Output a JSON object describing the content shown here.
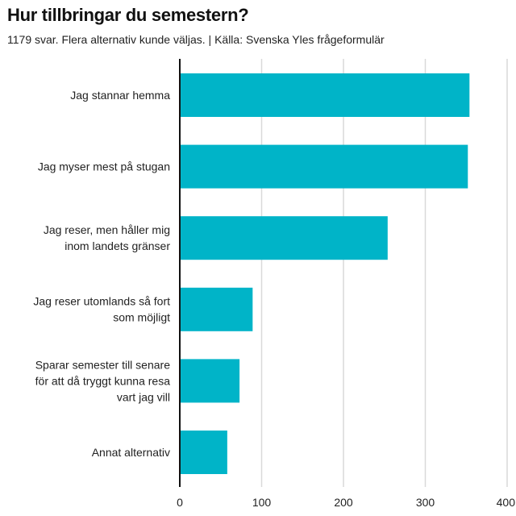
{
  "header": {
    "title": "Hur tillbringar du semestern?",
    "subtitle": "1179 svar. Flera alternativ kunde väljas. | Källa: Svenska Yles frågeformulär"
  },
  "colors": {
    "bar": "#00b4c8",
    "grid": "#d9d9d9",
    "axis": "#111111",
    "text": "#222222"
  },
  "chart_data": {
    "type": "bar",
    "orientation": "horizontal",
    "categories": [
      [
        "Jag stannar hemma"
      ],
      [
        "Jag myser mest på stugan"
      ],
      [
        "Jag reser, men håller mig",
        "inom landets gränser"
      ],
      [
        "Jag reser utomlands så fort",
        "som möjligt"
      ],
      [
        "Sparar semester till senare",
        "för att då tryggt kunna resa",
        "vart jag vill"
      ],
      [
        "Annat alternativ"
      ]
    ],
    "values": [
      354,
      352,
      254,
      89,
      73,
      58
    ],
    "xlim": [
      0,
      400
    ],
    "xticks": [
      0,
      100,
      200,
      300,
      400
    ],
    "xtick_labels": [
      "0",
      "100",
      "200",
      "300",
      "400"
    ],
    "grid": true,
    "xlabel": "",
    "ylabel": ""
  }
}
